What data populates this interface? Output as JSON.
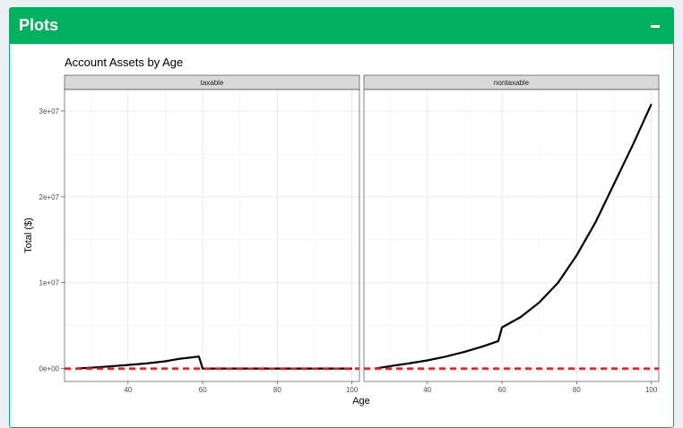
{
  "header": {
    "title": "Plots",
    "collapse_icon": "minus-icon"
  },
  "colors": {
    "header": "#00b05e",
    "line": "#000000",
    "reference": "#e41a1c",
    "strip": "#d9d9d9"
  },
  "chart_data": {
    "type": "line",
    "title": "Account Assets by Age",
    "xlabel": "Age",
    "ylabel": "Total ($)",
    "xlim": [
      23,
      102
    ],
    "ylim": [
      -1500000,
      32500000
    ],
    "x_ticks": [
      40,
      60,
      80,
      100
    ],
    "x_tick_labels": [
      "40",
      "60",
      "80",
      "100"
    ],
    "y_ticks": [
      0,
      10000000,
      20000000,
      30000000
    ],
    "y_tick_labels": [
      "0e+00",
      "1e+07",
      "2e+07",
      "3e+07"
    ],
    "grid": true,
    "reference_line": {
      "y": 0,
      "style": "dashed"
    },
    "facets": [
      {
        "name": "taxable",
        "series": [
          {
            "x": [
              26,
              30,
              35,
              40,
              45,
              50,
              54,
              59,
              60,
              65,
              70,
              80,
              90,
              100
            ],
            "y": [
              0,
              100000,
              250000,
              420000,
              600000,
              850000,
              1150000,
              1400000,
              0,
              0,
              0,
              0,
              0,
              0
            ]
          }
        ]
      },
      {
        "name": "nontaxable",
        "series": [
          {
            "x": [
              26,
              30,
              35,
              40,
              45,
              50,
              55,
              59,
              60,
              65,
              70,
              75,
              80,
              85,
              90,
              95,
              100
            ],
            "y": [
              0,
              280000,
              600000,
              950000,
              1400000,
              1950000,
              2600000,
              3200000,
              4800000,
              6000000,
              7700000,
              10000000,
              13200000,
              17000000,
              21500000,
              26000000,
              30800000
            ]
          }
        ]
      }
    ]
  }
}
